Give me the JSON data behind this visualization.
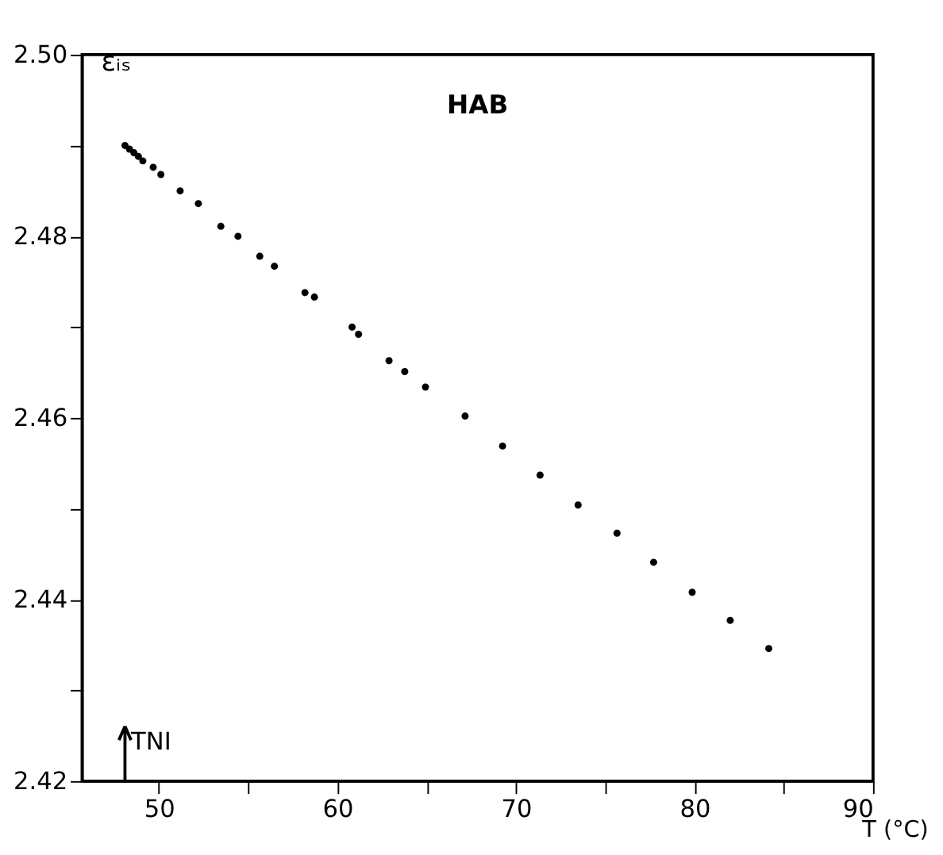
{
  "chart_data": {
    "type": "scatter",
    "xlabel": "T (°C)",
    "ylabel": "εᵢₛ",
    "x": [
      48.1,
      48.35,
      48.6,
      48.85,
      49.1,
      49.68,
      50.11,
      51.19,
      52.21,
      53.47,
      54.43,
      55.65,
      56.47,
      58.18,
      58.71,
      60.82,
      61.18,
      62.89,
      63.77,
      64.93,
      67.15,
      69.25,
      71.35,
      73.48,
      75.66,
      77.71,
      79.87,
      82.0,
      84.16
    ],
    "series": [
      {
        "color": "#000000",
        "values": [
          2.49,
          2.4896,
          2.4892,
          2.4888,
          2.4883,
          2.4876,
          2.4868,
          2.485,
          2.4836,
          2.4811,
          2.48,
          2.4778,
          2.4767,
          2.4738,
          2.4733,
          2.47,
          2.4692,
          2.4663,
          2.4651,
          2.4634,
          2.4602,
          2.4569,
          2.4537,
          2.4504,
          2.4473,
          2.4441,
          2.4408,
          2.4377,
          2.4346
        ]
      }
    ],
    "xlim": [
      45.7,
      90
    ],
    "ylim": [
      2.42,
      2.5
    ],
    "xticks": [
      50,
      {
        "value": 55,
        "label": null
      },
      60,
      {
        "value": 65,
        "label": null
      },
      70,
      {
        "value": 75,
        "label": null
      },
      80,
      {
        "value": 85,
        "label": null
      },
      90
    ],
    "yticks": [
      2.42,
      {
        "value": 2.43,
        "label": null
      },
      2.44,
      {
        "value": 2.45,
        "label": null
      },
      2.46,
      {
        "value": 2.47,
        "label": null
      },
      2.48,
      {
        "value": 2.49,
        "label": null
      },
      {
        "value": 2.5,
        "label": "2.50"
      }
    ],
    "marker": "circle",
    "grid": false,
    "ref_lines": [
      {
        "axis": "x",
        "value": 48.1,
        "label": "TNI"
      }
    ],
    "annotations": [
      "HAB"
    ]
  }
}
